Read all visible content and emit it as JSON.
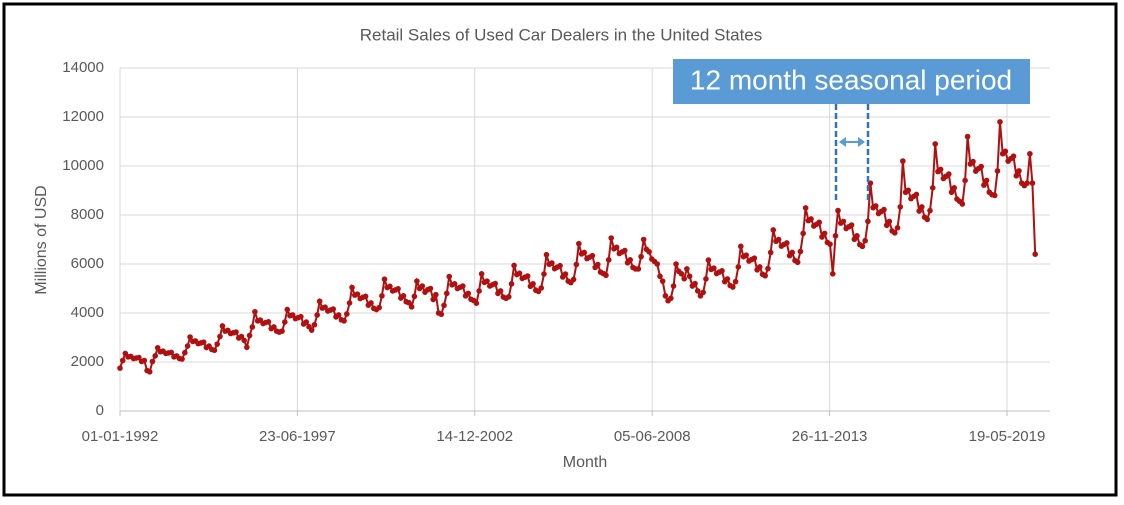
{
  "chart_data": {
    "type": "line",
    "title": "Retail Sales of Used Car Dealers in the United States",
    "xlabel": "Month",
    "ylabel": "Millions of USD",
    "annotation": "12 month seasonal period",
    "grid": true,
    "ylim": [
      0,
      14000
    ],
    "yticks": [
      0,
      2000,
      4000,
      6000,
      8000,
      10000,
      12000,
      14000
    ],
    "xlim": [
      "1992-01-01",
      "2020-09-15"
    ],
    "xticks": [
      {
        "value": "1992-01-01",
        "label": "01-01-1992"
      },
      {
        "value": "1997-06-23",
        "label": "23-06-1997"
      },
      {
        "value": "2002-12-14",
        "label": "14-12-2002"
      },
      {
        "value": "2008-06-05",
        "label": "05-06-2008"
      },
      {
        "value": "2013-11-26",
        "label": "26-11-2013"
      },
      {
        "value": "2019-05-19",
        "label": "19-05-2019"
      }
    ],
    "x": [
      "1992-01-01",
      "1992-02-01",
      "1992-03-01",
      "1992-04-01",
      "1992-05-01",
      "1992-06-01",
      "1992-07-01",
      "1992-08-01",
      "1992-09-01",
      "1992-10-01",
      "1992-11-01",
      "1992-12-01",
      "1993-01-01",
      "1993-02-01",
      "1993-03-01",
      "1993-04-01",
      "1993-05-01",
      "1993-06-01",
      "1993-07-01",
      "1993-08-01",
      "1993-09-01",
      "1993-10-01",
      "1993-11-01",
      "1993-12-01",
      "1994-01-01",
      "1994-02-01",
      "1994-03-01",
      "1994-04-01",
      "1994-05-01",
      "1994-06-01",
      "1994-07-01",
      "1994-08-01",
      "1994-09-01",
      "1994-10-01",
      "1994-11-01",
      "1994-12-01",
      "1995-01-01",
      "1995-02-01",
      "1995-03-01",
      "1995-04-01",
      "1995-05-01",
      "1995-06-01",
      "1995-07-01",
      "1995-08-01",
      "1995-09-01",
      "1995-10-01",
      "1995-11-01",
      "1995-12-01",
      "1996-01-01",
      "1996-02-01",
      "1996-03-01",
      "1996-04-01",
      "1996-05-01",
      "1996-06-01",
      "1996-07-01",
      "1996-08-01",
      "1996-09-01",
      "1996-10-01",
      "1996-11-01",
      "1996-12-01",
      "1997-01-01",
      "1997-02-01",
      "1997-03-01",
      "1997-04-01",
      "1997-05-01",
      "1997-06-01",
      "1997-07-01",
      "1997-08-01",
      "1997-09-01",
      "1997-10-01",
      "1997-11-01",
      "1997-12-01",
      "1998-01-01",
      "1998-02-01",
      "1998-03-01",
      "1998-04-01",
      "1998-05-01",
      "1998-06-01",
      "1998-07-01",
      "1998-08-01",
      "1998-09-01",
      "1998-10-01",
      "1998-11-01",
      "1998-12-01",
      "1999-01-01",
      "1999-02-01",
      "1999-03-01",
      "1999-04-01",
      "1999-05-01",
      "1999-06-01",
      "1999-07-01",
      "1999-08-01",
      "1999-09-01",
      "1999-10-01",
      "1999-11-01",
      "1999-12-01",
      "2000-01-01",
      "2000-02-01",
      "2000-03-01",
      "2000-04-01",
      "2000-05-01",
      "2000-06-01",
      "2000-07-01",
      "2000-08-01",
      "2000-09-01",
      "2000-10-01",
      "2000-11-01",
      "2000-12-01",
      "2001-01-01",
      "2001-02-01",
      "2001-03-01",
      "2001-04-01",
      "2001-05-01",
      "2001-06-01",
      "2001-07-01",
      "2001-08-01",
      "2001-09-01",
      "2001-10-01",
      "2001-11-01",
      "2001-12-01",
      "2002-01-01",
      "2002-02-01",
      "2002-03-01",
      "2002-04-01",
      "2002-05-01",
      "2002-06-01",
      "2002-07-01",
      "2002-08-01",
      "2002-09-01",
      "2002-10-01",
      "2002-11-01",
      "2002-12-01",
      "2003-01-01",
      "2003-02-01",
      "2003-03-01",
      "2003-04-01",
      "2003-05-01",
      "2003-06-01",
      "2003-07-01",
      "2003-08-01",
      "2003-09-01",
      "2003-10-01",
      "2003-11-01",
      "2003-12-01",
      "2004-01-01",
      "2004-02-01",
      "2004-03-01",
      "2004-04-01",
      "2004-05-01",
      "2004-06-01",
      "2004-07-01",
      "2004-08-01",
      "2004-09-01",
      "2004-10-01",
      "2004-11-01",
      "2004-12-01",
      "2005-01-01",
      "2005-02-01",
      "2005-03-01",
      "2005-04-01",
      "2005-05-01",
      "2005-06-01",
      "2005-07-01",
      "2005-08-01",
      "2005-09-01",
      "2005-10-01",
      "2005-11-01",
      "2005-12-01",
      "2006-01-01",
      "2006-02-01",
      "2006-03-01",
      "2006-04-01",
      "2006-05-01",
      "2006-06-01",
      "2006-07-01",
      "2006-08-01",
      "2006-09-01",
      "2006-10-01",
      "2006-11-01",
      "2006-12-01",
      "2007-01-01",
      "2007-02-01",
      "2007-03-01",
      "2007-04-01",
      "2007-05-01",
      "2007-06-01",
      "2007-07-01",
      "2007-08-01",
      "2007-09-01",
      "2007-10-01",
      "2007-11-01",
      "2007-12-01",
      "2008-01-01",
      "2008-02-01",
      "2008-03-01",
      "2008-04-01",
      "2008-05-01",
      "2008-06-01",
      "2008-07-01",
      "2008-08-01",
      "2008-09-01",
      "2008-10-01",
      "2008-11-01",
      "2008-12-01",
      "2009-01-01",
      "2009-02-01",
      "2009-03-01",
      "2009-04-01",
      "2009-05-01",
      "2009-06-01",
      "2009-07-01",
      "2009-08-01",
      "2009-09-01",
      "2009-10-01",
      "2009-11-01",
      "2009-12-01",
      "2010-01-01",
      "2010-02-01",
      "2010-03-01",
      "2010-04-01",
      "2010-05-01",
      "2010-06-01",
      "2010-07-01",
      "2010-08-01",
      "2010-09-01",
      "2010-10-01",
      "2010-11-01",
      "2010-12-01",
      "2011-01-01",
      "2011-02-01",
      "2011-03-01",
      "2011-04-01",
      "2011-05-01",
      "2011-06-01",
      "2011-07-01",
      "2011-08-01",
      "2011-09-01",
      "2011-10-01",
      "2011-11-01",
      "2011-12-01",
      "2012-01-01",
      "2012-02-01",
      "2012-03-01",
      "2012-04-01",
      "2012-05-01",
      "2012-06-01",
      "2012-07-01",
      "2012-08-01",
      "2012-09-01",
      "2012-10-01",
      "2012-11-01",
      "2012-12-01",
      "2013-01-01",
      "2013-02-01",
      "2013-03-01",
      "2013-04-01",
      "2013-05-01",
      "2013-06-01",
      "2013-07-01",
      "2013-08-01",
      "2013-09-01",
      "2013-10-01",
      "2013-11-01",
      "2013-12-01",
      "2014-01-01",
      "2014-02-01",
      "2014-03-01",
      "2014-04-01",
      "2014-05-01",
      "2014-06-01",
      "2014-07-01",
      "2014-08-01",
      "2014-09-01",
      "2014-10-01",
      "2014-11-01",
      "2014-12-01",
      "2015-01-01",
      "2015-02-01",
      "2015-03-01",
      "2015-04-01",
      "2015-05-01",
      "2015-06-01",
      "2015-07-01",
      "2015-08-01",
      "2015-09-01",
      "2015-10-01",
      "2015-11-01",
      "2015-12-01",
      "2016-01-01",
      "2016-02-01",
      "2016-03-01",
      "2016-04-01",
      "2016-05-01",
      "2016-06-01",
      "2016-07-01",
      "2016-08-01",
      "2016-09-01",
      "2016-10-01",
      "2016-11-01",
      "2016-12-01",
      "2017-01-01",
      "2017-02-01",
      "2017-03-01",
      "2017-04-01",
      "2017-05-01",
      "2017-06-01",
      "2017-07-01",
      "2017-08-01",
      "2017-09-01",
      "2017-10-01",
      "2017-11-01",
      "2017-12-01",
      "2018-01-01",
      "2018-02-01",
      "2018-03-01",
      "2018-04-01",
      "2018-05-01",
      "2018-06-01",
      "2018-07-01",
      "2018-08-01",
      "2018-09-01",
      "2018-10-01",
      "2018-11-01",
      "2018-12-01",
      "2019-01-01",
      "2019-02-01",
      "2019-03-01",
      "2019-04-01",
      "2019-05-01",
      "2019-06-01",
      "2019-07-01",
      "2019-08-01",
      "2019-09-01",
      "2019-10-01",
      "2019-11-01",
      "2019-12-01",
      "2020-01-01",
      "2020-02-01",
      "2020-03-01",
      "2020-04-01"
    ],
    "series": [
      {
        "color": "#b01010",
        "values": [
          1750,
          2060,
          2350,
          2210,
          2230,
          2140,
          2160,
          2180,
          2020,
          2060,
          1650,
          1600,
          2020,
          2250,
          2580,
          2420,
          2440,
          2350,
          2370,
          2390,
          2210,
          2250,
          2140,
          2120,
          2380,
          2650,
          3020,
          2840,
          2860,
          2750,
          2780,
          2810,
          2590,
          2650,
          2510,
          2480,
          2730,
          3040,
          3470,
          3260,
          3290,
          3160,
          3190,
          3220,
          2980,
          3040,
          2880,
          2600,
          3080,
          3430,
          4050,
          3680,
          3710,
          3570,
          3610,
          3640,
          3360,
          3430,
          3260,
          3220,
          3260,
          3630,
          4140,
          3890,
          3920,
          3770,
          3810,
          3850,
          3550,
          3630,
          3440,
          3300,
          3520,
          3920,
          4480,
          4200,
          4240,
          4080,
          4120,
          4160,
          3840,
          3920,
          3720,
          3680,
          3960,
          4410,
          5040,
          4730,
          4770,
          4590,
          4640,
          4680,
          4320,
          4410,
          4190,
          4140,
          4220,
          4700,
          5380,
          5040,
          5090,
          4900,
          4940,
          4990,
          4610,
          4700,
          4460,
          4420,
          4250,
          4680,
          5300,
          5000,
          5100,
          4850,
          4950,
          5000,
          4550,
          4750,
          4000,
          3950,
          4310,
          4800,
          5490,
          5150,
          5190,
          5000,
          5050,
          5100,
          4700,
          4800,
          4560,
          4510,
          4400,
          4900,
          5600,
          5250,
          5300,
          5100,
          5150,
          5200,
          4800,
          4900,
          4650,
          4600,
          4660,
          5190,
          5940,
          5570,
          5620,
          5410,
          5460,
          5510,
          5090,
          5190,
          4930,
          4880,
          5020,
          5590,
          6380,
          5990,
          6040,
          5810,
          5870,
          5930,
          5470,
          5590,
          5300,
          5240,
          5370,
          5980,
          6830,
          6410,
          6470,
          6220,
          6280,
          6340,
          5860,
          5980,
          5670,
          5610,
          5540,
          6170,
          7060,
          6620,
          6680,
          6430,
          6490,
          6550,
          6050,
          6170,
          5860,
          5800,
          5800,
          6300,
          7000,
          6600,
          6500,
          6200,
          6100,
          6000,
          5500,
          5300,
          4700,
          4500,
          4600,
          5100,
          6000,
          5700,
          5600,
          5400,
          5800,
          5500,
          5100,
          5200,
          4900,
          4700,
          4840,
          5390,
          6160,
          5780,
          5830,
          5610,
          5670,
          5720,
          5280,
          5390,
          5120,
          5060,
          5280,
          5880,
          6720,
          6300,
          6360,
          6120,
          6180,
          6240,
          5760,
          5880,
          5580,
          5520,
          5810,
          6470,
          7390,
          6930,
          7000,
          6730,
          6800,
          6860,
          6340,
          6470,
          6140,
          6070,
          6510,
          7250,
          8290,
          7770,
          7840,
          7550,
          7620,
          7700,
          7100,
          7250,
          6880,
          6810,
          5600,
          7150,
          8180,
          7670,
          7740,
          7450,
          7520,
          7590,
          7010,
          7150,
          6790,
          6720,
          6950,
          7740,
          9300,
          8300,
          8370,
          8060,
          8140,
          8220,
          7580,
          7740,
          7350,
          7270,
          7480,
          8330,
          10200,
          8930,
          9010,
          8670,
          8760,
          8840,
          8160,
          8330,
          7910,
          7820,
          8180,
          9110,
          10900,
          9770,
          9860,
          9490,
          9580,
          9670,
          8930,
          9110,
          8650,
          8560,
          8450,
          9410,
          11200,
          10080,
          10180,
          9790,
          9890,
          9980,
          9220,
          9410,
          8930,
          8830,
          8800,
          9800,
          11800,
          10500,
          10600,
          10200,
          10300,
          10400,
          9600,
          9800,
          9300,
          9200,
          9300,
          10500,
          9300,
          6400
        ]
      }
    ]
  }
}
